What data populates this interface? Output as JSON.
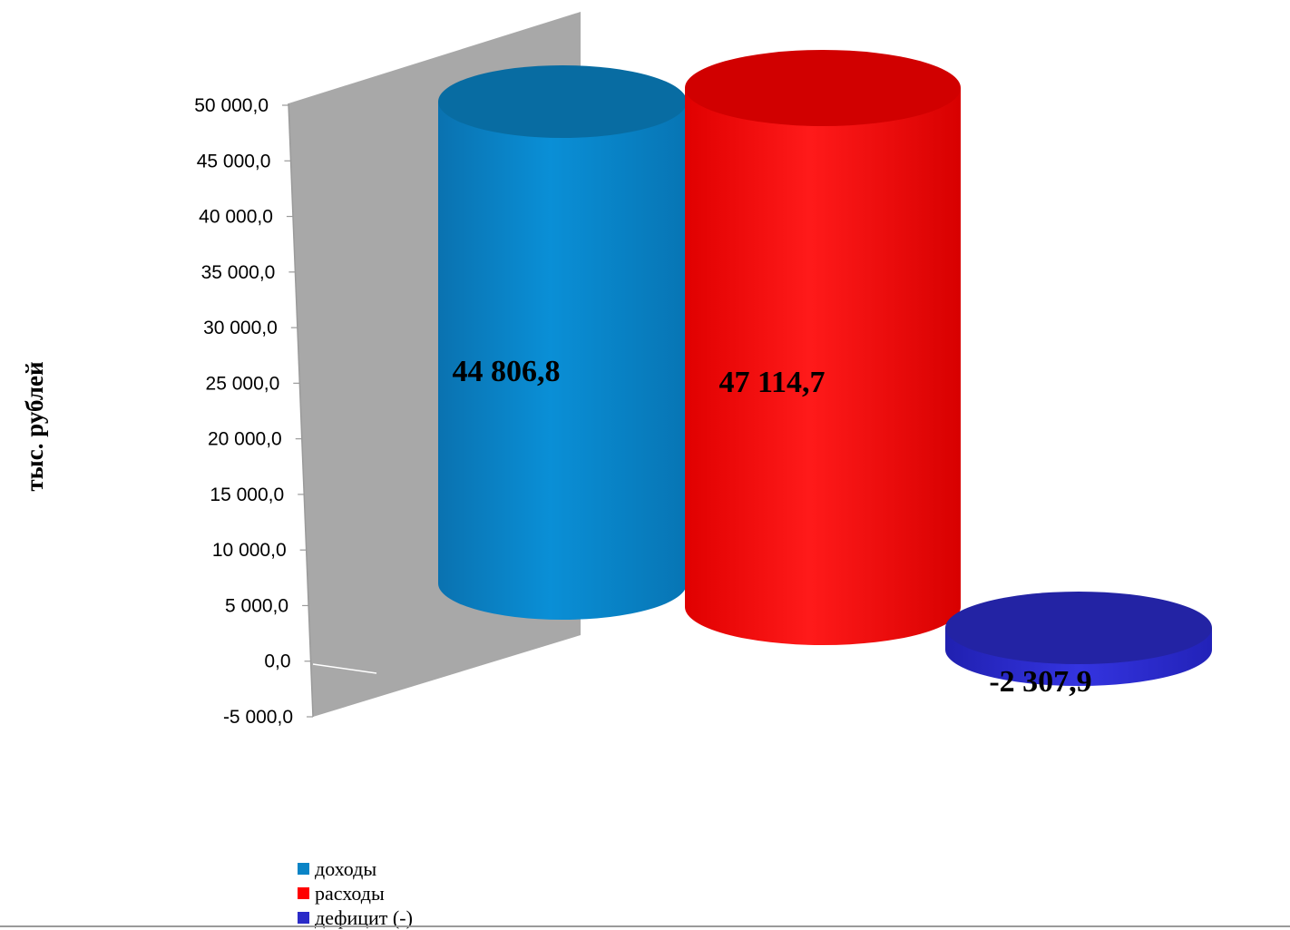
{
  "chart_data": {
    "type": "bar",
    "categories": [
      "доходы",
      "расходы",
      "дефицит (-)"
    ],
    "values": [
      44806.8,
      47114.7,
      -2307.9
    ],
    "value_labels": [
      "44 806,8",
      "47 114,7",
      "-2 307,9"
    ],
    "colors": [
      "#0a84c6",
      "#ff0000",
      "#2b2bc8"
    ],
    "title": "",
    "xlabel": "",
    "ylabel": "тыс. рублей",
    "ylim": [
      -5000,
      50000
    ],
    "yticks": [
      50000,
      45000,
      40000,
      35000,
      30000,
      25000,
      20000,
      15000,
      10000,
      5000,
      0,
      -5000
    ],
    "ytick_labels": [
      "50 000,0",
      "45 000,0",
      "40 000,0",
      "35 000,0",
      "30 000,0",
      "25 000,0",
      "20 000,0",
      "15 000,0",
      "10 000,0",
      "5 000,0",
      "0,0",
      "-5 000,0"
    ],
    "legend_position": "bottom-left",
    "grid": false,
    "style": "3d-cylinder"
  },
  "legend": {
    "items": [
      "доходы",
      "расходы",
      "дефицит (-)"
    ]
  }
}
